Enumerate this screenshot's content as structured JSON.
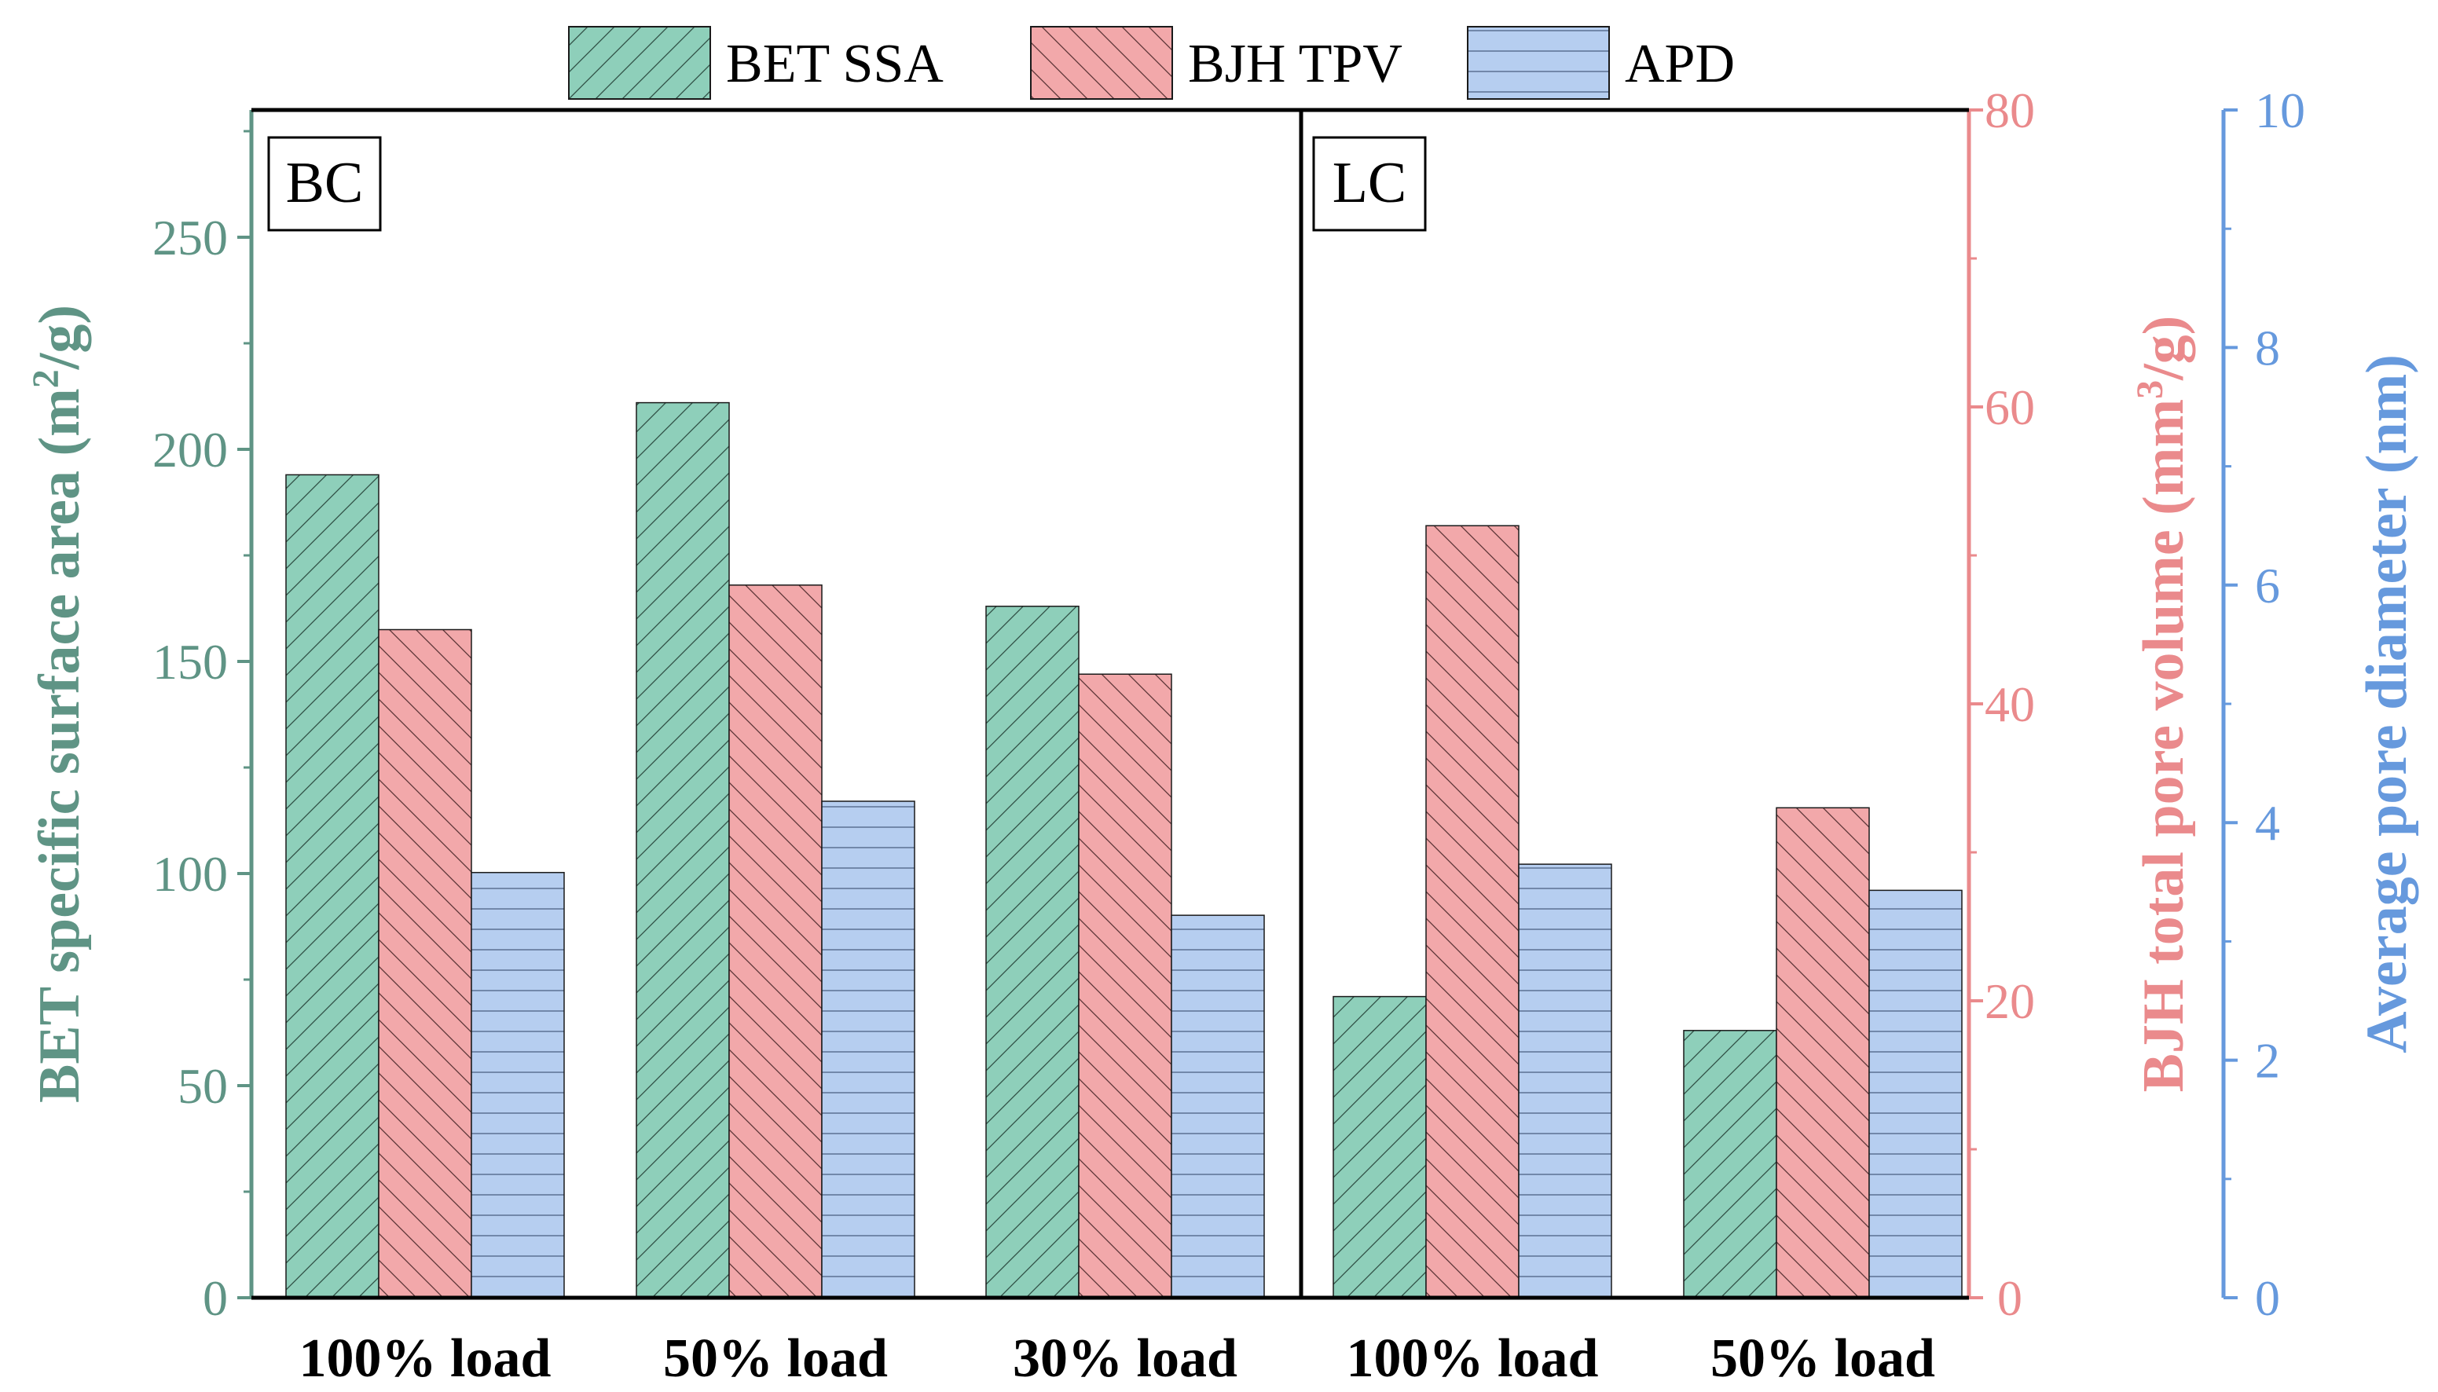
{
  "chart_data": {
    "type": "bar",
    "categories": [
      "100% load",
      "50% load",
      "30% load",
      "100% load",
      "50% load"
    ],
    "groups": [
      {
        "label": "BC",
        "category_indices": [
          0,
          1,
          2
        ]
      },
      {
        "label": "LC",
        "category_indices": [
          3,
          4
        ]
      }
    ],
    "series": [
      {
        "name": "BET SSA",
        "axis": "left",
        "values": [
          194,
          211,
          163,
          71,
          63
        ],
        "color": "#8ECFBA",
        "hatch": "forward-diagonal"
      },
      {
        "name": "BJH TPV",
        "axis": "right1",
        "values": [
          45,
          48,
          42,
          52,
          33
        ],
        "color": "#F2A8AA",
        "hatch": "back-diagonal"
      },
      {
        "name": "APD",
        "axis": "right2",
        "values": [
          3.58,
          4.18,
          3.22,
          3.65,
          3.43
        ],
        "color": "#B6CEF0",
        "hatch": "horizontal"
      }
    ],
    "axes": {
      "left": {
        "label_main": "BET specific surface area (m",
        "label_sup": "2",
        "label_tail": "/g)",
        "ylim": [
          0,
          280
        ],
        "ticks": [
          0,
          50,
          100,
          150,
          200,
          250
        ],
        "color": "#5F9485"
      },
      "right1": {
        "label_main": "BJH total pore volume (mm",
        "label_sup": "3",
        "label_tail": "/g)",
        "ylim": [
          0,
          80
        ],
        "ticks": [
          0,
          20,
          40,
          60,
          80
        ],
        "color": "#EA8A8C"
      },
      "right2": {
        "label_main": "Average pore diameter (nm)",
        "ylim": [
          0,
          10
        ],
        "ticks": [
          0,
          2,
          4,
          6,
          8,
          10
        ],
        "color": "#6699DD"
      }
    },
    "legend": {
      "placement": "top-center",
      "entries": [
        "BET SSA",
        "BJH TPV",
        "APD"
      ]
    }
  }
}
